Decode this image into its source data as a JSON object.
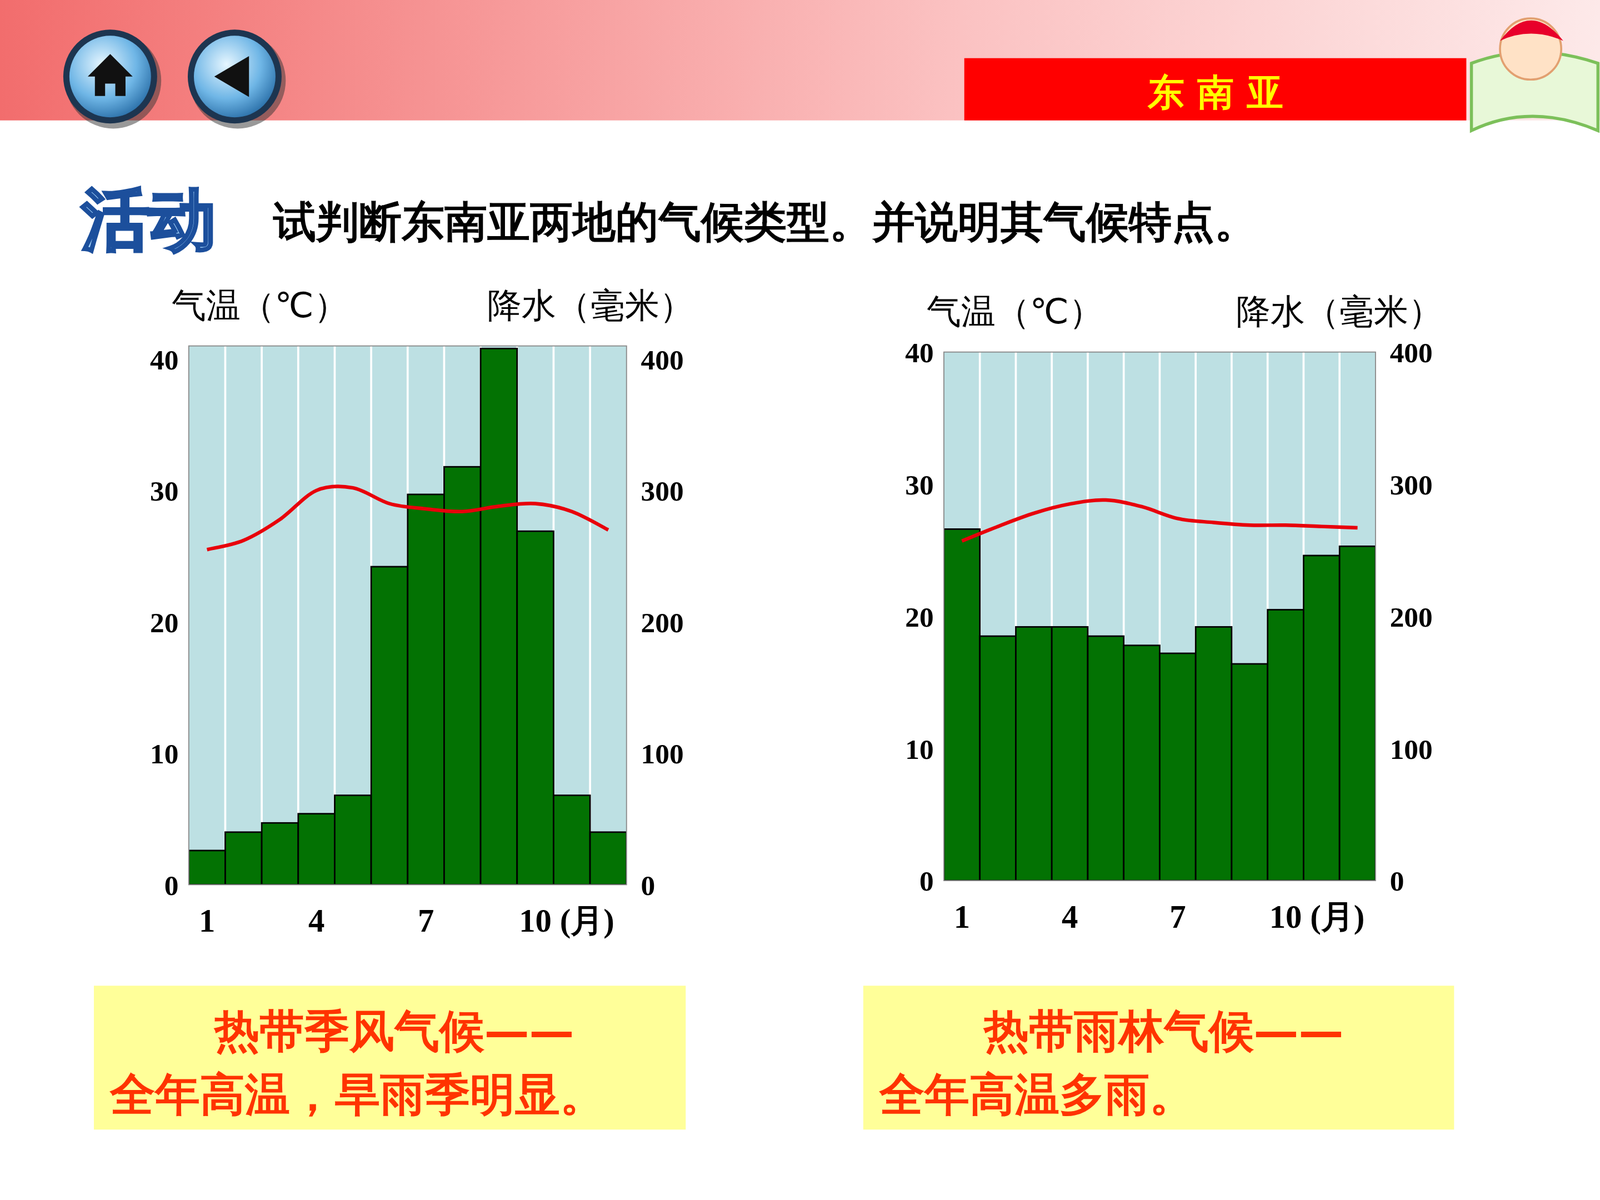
{
  "header": {
    "section": "东 南 亚",
    "activity": "活动",
    "question": "试判断东南亚两地的气候类型。并说明其气候特点。"
  },
  "chart_data": [
    {
      "type": "bar",
      "y_label": "气温（℃）",
      "y2_label": "降水（毫米）",
      "x_label": "(月)",
      "categories": [
        "1",
        null,
        null,
        "4",
        null,
        null,
        "7",
        null,
        null,
        "10",
        null,
        null
      ],
      "ylim": [
        0,
        41
      ],
      "yticks": [
        0,
        10,
        20,
        30,
        40
      ],
      "y2lim": [
        0,
        410
      ],
      "y2ticks": [
        0,
        100,
        200,
        300,
        400
      ],
      "grid": true,
      "series": [
        {
          "type": "bar",
          "axis": "y2",
          "color": "#037203",
          "values": [
            26,
            40,
            47,
            54,
            68,
            242,
            297,
            318,
            408,
            269,
            68,
            40
          ]
        },
        {
          "type": "line",
          "color": "#e8000b",
          "values": [
            25.5,
            26.2,
            27.8,
            30.0,
            30.2,
            29.0,
            28.6,
            28.4,
            28.8,
            29.0,
            28.4,
            27.0
          ]
        }
      ],
      "annotations": [
        "热带季风气候——",
        "全年高温，旱雨季明显。"
      ]
    },
    {
      "type": "bar",
      "y_label": "气温（℃）",
      "y2_label": "降水（毫米）",
      "x_label": "(月)",
      "categories": [
        "1",
        null,
        null,
        "4",
        null,
        null,
        "7",
        null,
        null,
        "10",
        null,
        null
      ],
      "ylim": [
        0,
        40
      ],
      "yticks": [
        0,
        10,
        20,
        30,
        40
      ],
      "y2lim": [
        0,
        400
      ],
      "y2ticks": [
        0,
        100,
        200,
        300,
        400
      ],
      "grid": true,
      "series": [
        {
          "type": "bar",
          "axis": "y2",
          "color": "#037203",
          "values": [
            266,
            185,
            192,
            192,
            185,
            178,
            172,
            192,
            164,
            205,
            246,
            253
          ]
        },
        {
          "type": "line",
          "color": "#e8000b",
          "values": [
            25.7,
            26.8,
            27.8,
            28.5,
            28.8,
            28.3,
            27.4,
            27.1,
            26.9,
            26.9,
            26.8,
            26.7
          ]
        }
      ],
      "annotations": [
        "热带雨林气候——",
        "全年高温多雨。"
      ]
    }
  ]
}
